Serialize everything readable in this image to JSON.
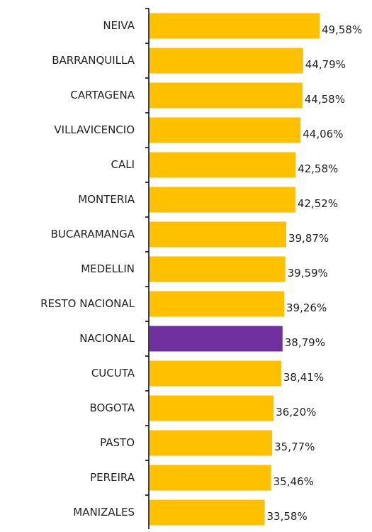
{
  "chart_data": {
    "type": "barh",
    "categories": [
      "NEIVA",
      "BARRANQUILLA",
      "CARTAGENA",
      "VILLAVICENCIO",
      "CALI",
      "MONTERIA",
      "BUCARAMANGA",
      "MEDELLIN",
      "RESTO NACIONAL",
      "NACIONAL",
      "CUCUTA",
      "BOGOTA",
      "PASTO",
      "PEREIRA",
      "MANIZALES"
    ],
    "values": [
      49.58,
      44.79,
      44.58,
      44.06,
      42.58,
      42.52,
      39.87,
      39.59,
      39.26,
      38.79,
      38.41,
      36.2,
      35.77,
      35.46,
      33.58
    ],
    "value_labels": [
      "49,58%",
      "44,79%",
      "44,58%",
      "44,06%",
      "42,58%",
      "42,52%",
      "39,87%",
      "39,59%",
      "39,26%",
      "38,79%",
      "38,41%",
      "36,20%",
      "35,77%",
      "35,46%",
      "33,58%"
    ],
    "colors": [
      "#FFC000",
      "#FFC000",
      "#FFC000",
      "#FFC000",
      "#FFC000",
      "#FFC000",
      "#FFC000",
      "#FFC000",
      "#FFC000",
      "#7030A0",
      "#FFC000",
      "#FFC000",
      "#FFC000",
      "#FFC000",
      "#FFC000"
    ]
  }
}
